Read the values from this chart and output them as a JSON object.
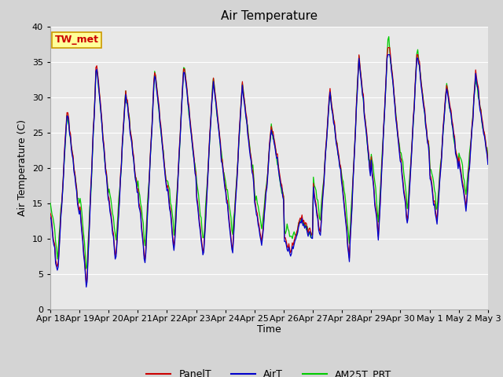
{
  "title": "Air Temperature",
  "xlabel": "Time",
  "ylabel": "Air Temperature (C)",
  "ylim": [
    0,
    40
  ],
  "yticks": [
    0,
    5,
    10,
    15,
    20,
    25,
    30,
    35,
    40
  ],
  "annotation_text": "TW_met",
  "annotation_color": "#cc0000",
  "annotation_bg": "#ffff99",
  "annotation_border": "#cc9900",
  "line_colors": {
    "PanelT": "#cc0000",
    "AirT": "#0000cc",
    "AM25T_PRT": "#00cc00"
  },
  "fig_bg_color": "#d4d4d4",
  "plot_bg": "#e8e8e8",
  "grid_color": "white",
  "title_fontsize": 11,
  "label_fontsize": 9,
  "tick_fontsize": 8,
  "n_points": 500
}
